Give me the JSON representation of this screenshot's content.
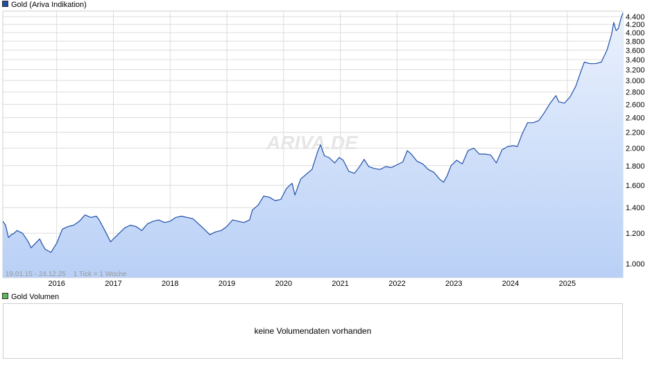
{
  "legend": {
    "main_label": "Gold (Ariva Indikation)",
    "volume_label": "Gold Volumen"
  },
  "watermark": "ARIVA.DE",
  "range_note": "19.01.15 - 24.12.25    1 Tick = 1 Woche",
  "volume_panel": {
    "message": "keine Volumendaten vorhanden"
  },
  "colors": {
    "line": "#1f4fa8",
    "area_top": "#eaf1fd",
    "area_bottom": "#b9d0f6",
    "grid": "#dcdcdc",
    "main_legend_swatch": "#1f4fa8",
    "volume_legend_swatch": "#5cb85c"
  },
  "chart_data": {
    "type": "area",
    "title": "Gold (Ariva Indikation)",
    "y_scale": "log",
    "ylim": [
      0.92,
      4.55
    ],
    "y_ticks": [
      {
        "v": 1.0,
        "label": "1.000"
      },
      {
        "v": 1.2,
        "label": "1.200"
      },
      {
        "v": 1.4,
        "label": "1.400"
      },
      {
        "v": 1.6,
        "label": "1.600"
      },
      {
        "v": 1.8,
        "label": "1.800"
      },
      {
        "v": 2.0,
        "label": "2.000"
      },
      {
        "v": 2.2,
        "label": "2.200"
      },
      {
        "v": 2.4,
        "label": "2.400"
      },
      {
        "v": 2.6,
        "label": "2.600"
      },
      {
        "v": 2.8,
        "label": "2.800"
      },
      {
        "v": 3.0,
        "label": "3.000"
      },
      {
        "v": 3.2,
        "label": "3.200"
      },
      {
        "v": 3.4,
        "label": "3.400"
      },
      {
        "v": 3.6,
        "label": "3.600"
      },
      {
        "v": 3.8,
        "label": "3.800"
      },
      {
        "v": 4.0,
        "label": "4.000"
      },
      {
        "v": 4.2,
        "label": "4.200"
      },
      {
        "v": 4.4,
        "label": "4.400"
      }
    ],
    "xlim": [
      2015.05,
      2025.98
    ],
    "x_ticks": [
      {
        "v": 2016,
        "label": "2016"
      },
      {
        "v": 2017,
        "label": "2017"
      },
      {
        "v": 2018,
        "label": "2018"
      },
      {
        "v": 2019,
        "label": "2019"
      },
      {
        "v": 2020,
        "label": "2020"
      },
      {
        "v": 2021,
        "label": "2021"
      },
      {
        "v": 2022,
        "label": "2022"
      },
      {
        "v": 2023,
        "label": "2023"
      },
      {
        "v": 2024,
        "label": "2024"
      },
      {
        "v": 2025,
        "label": "2025"
      }
    ],
    "grid": true,
    "series": [
      {
        "name": "Gold (Ariva Indikation)",
        "points": [
          [
            2015.05,
            1.29
          ],
          [
            2015.1,
            1.26
          ],
          [
            2015.15,
            1.17
          ],
          [
            2015.2,
            1.19
          ],
          [
            2015.25,
            1.2
          ],
          [
            2015.3,
            1.22
          ],
          [
            2015.4,
            1.2
          ],
          [
            2015.45,
            1.17
          ],
          [
            2015.5,
            1.14
          ],
          [
            2015.55,
            1.1
          ],
          [
            2015.6,
            1.12
          ],
          [
            2015.7,
            1.16
          ],
          [
            2015.75,
            1.12
          ],
          [
            2015.8,
            1.09
          ],
          [
            2015.85,
            1.08
          ],
          [
            2015.9,
            1.07
          ],
          [
            2015.95,
            1.1
          ],
          [
            2016.0,
            1.13
          ],
          [
            2016.1,
            1.23
          ],
          [
            2016.2,
            1.25
          ],
          [
            2016.3,
            1.26
          ],
          [
            2016.4,
            1.29
          ],
          [
            2016.5,
            1.34
          ],
          [
            2016.6,
            1.32
          ],
          [
            2016.7,
            1.33
          ],
          [
            2016.75,
            1.3
          ],
          [
            2016.85,
            1.22
          ],
          [
            2016.95,
            1.14
          ],
          [
            2017.05,
            1.18
          ],
          [
            2017.2,
            1.24
          ],
          [
            2017.3,
            1.26
          ],
          [
            2017.4,
            1.25
          ],
          [
            2017.5,
            1.22
          ],
          [
            2017.6,
            1.27
          ],
          [
            2017.7,
            1.29
          ],
          [
            2017.8,
            1.3
          ],
          [
            2017.9,
            1.28
          ],
          [
            2018.0,
            1.29
          ],
          [
            2018.1,
            1.32
          ],
          [
            2018.2,
            1.33
          ],
          [
            2018.3,
            1.32
          ],
          [
            2018.4,
            1.31
          ],
          [
            2018.5,
            1.27
          ],
          [
            2018.6,
            1.23
          ],
          [
            2018.7,
            1.19
          ],
          [
            2018.8,
            1.21
          ],
          [
            2018.9,
            1.22
          ],
          [
            2019.0,
            1.25
          ],
          [
            2019.1,
            1.3
          ],
          [
            2019.2,
            1.29
          ],
          [
            2019.3,
            1.28
          ],
          [
            2019.4,
            1.3
          ],
          [
            2019.45,
            1.38
          ],
          [
            2019.55,
            1.42
          ],
          [
            2019.65,
            1.5
          ],
          [
            2019.75,
            1.49
          ],
          [
            2019.85,
            1.46
          ],
          [
            2019.95,
            1.47
          ],
          [
            2020.05,
            1.57
          ],
          [
            2020.15,
            1.62
          ],
          [
            2020.2,
            1.51
          ],
          [
            2020.3,
            1.66
          ],
          [
            2020.4,
            1.71
          ],
          [
            2020.5,
            1.76
          ],
          [
            2020.6,
            1.96
          ],
          [
            2020.65,
            2.04
          ],
          [
            2020.72,
            1.91
          ],
          [
            2020.8,
            1.89
          ],
          [
            2020.9,
            1.83
          ],
          [
            2020.98,
            1.89
          ],
          [
            2021.05,
            1.86
          ],
          [
            2021.15,
            1.74
          ],
          [
            2021.25,
            1.72
          ],
          [
            2021.35,
            1.8
          ],
          [
            2021.42,
            1.87
          ],
          [
            2021.5,
            1.79
          ],
          [
            2021.6,
            1.77
          ],
          [
            2021.7,
            1.76
          ],
          [
            2021.8,
            1.79
          ],
          [
            2021.9,
            1.78
          ],
          [
            2022.0,
            1.81
          ],
          [
            2022.1,
            1.84
          ],
          [
            2022.18,
            1.97
          ],
          [
            2022.25,
            1.93
          ],
          [
            2022.35,
            1.85
          ],
          [
            2022.45,
            1.82
          ],
          [
            2022.55,
            1.76
          ],
          [
            2022.65,
            1.73
          ],
          [
            2022.75,
            1.66
          ],
          [
            2022.82,
            1.63
          ],
          [
            2022.88,
            1.69
          ],
          [
            2022.95,
            1.8
          ],
          [
            2023.05,
            1.86
          ],
          [
            2023.15,
            1.82
          ],
          [
            2023.25,
            1.97
          ],
          [
            2023.35,
            2.0
          ],
          [
            2023.45,
            1.93
          ],
          [
            2023.55,
            1.93
          ],
          [
            2023.65,
            1.92
          ],
          [
            2023.75,
            1.83
          ],
          [
            2023.85,
            1.98
          ],
          [
            2023.95,
            2.02
          ],
          [
            2024.05,
            2.03
          ],
          [
            2024.12,
            2.02
          ],
          [
            2024.2,
            2.17
          ],
          [
            2024.3,
            2.33
          ],
          [
            2024.4,
            2.33
          ],
          [
            2024.5,
            2.36
          ],
          [
            2024.6,
            2.48
          ],
          [
            2024.7,
            2.62
          ],
          [
            2024.8,
            2.74
          ],
          [
            2024.85,
            2.64
          ],
          [
            2024.95,
            2.62
          ],
          [
            2025.05,
            2.72
          ],
          [
            2025.15,
            2.9
          ],
          [
            2025.25,
            3.2
          ],
          [
            2025.3,
            3.35
          ],
          [
            2025.4,
            3.32
          ],
          [
            2025.5,
            3.32
          ],
          [
            2025.6,
            3.35
          ],
          [
            2025.7,
            3.6
          ],
          [
            2025.78,
            3.95
          ],
          [
            2025.82,
            4.25
          ],
          [
            2025.86,
            4.05
          ],
          [
            2025.9,
            4.1
          ],
          [
            2025.94,
            4.32
          ],
          [
            2025.98,
            4.5
          ]
        ]
      }
    ]
  }
}
